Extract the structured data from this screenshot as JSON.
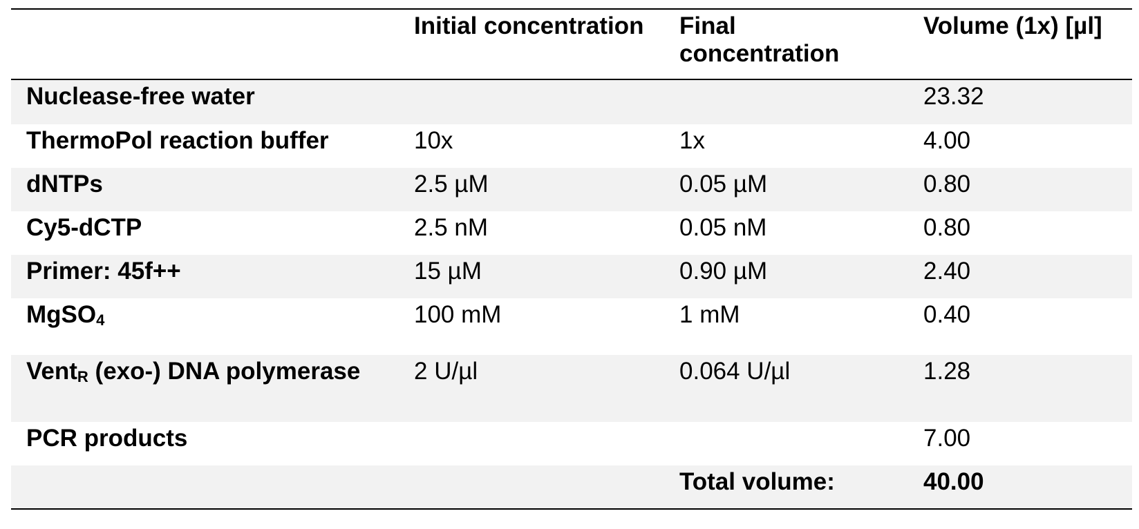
{
  "table": {
    "header": [
      "Initial concentration",
      "Final concentration",
      "Volume (1x) [µl]"
    ],
    "rows": [
      {
        "label": "Nuclease-free water",
        "cells": [
          null,
          null,
          "23.32"
        ]
      },
      {
        "label": "ThermoPol reaction buffer",
        "cells": [
          "10x",
          "1x",
          "4.00"
        ]
      },
      {
        "label": "dNTPs",
        "cells": [
          "2.5 µM",
          "0.05 µM",
          "0.80"
        ]
      },
      {
        "label": "Cy5-dCTP",
        "cells": [
          "2.5 nM",
          "0.05 nM",
          "0.80"
        ]
      },
      {
        "label": "Primer: 45f++",
        "cells": [
          "15 µM",
          "0.90 µM",
          "2.40"
        ]
      },
      {
        "label": "MgSO",
        "label_sub": "4",
        "cells": [
          "100 mM",
          "1 mM",
          "0.40"
        ]
      },
      {
        "label": "Vent",
        "label_sub": "R",
        "label_rest": " (exo-) DNA polymerase",
        "cells": [
          "2 U/µl",
          "0.064 U/µl",
          "1.28"
        ]
      },
      {
        "label": "PCR products",
        "cells": [
          null,
          null,
          "7.00"
        ]
      }
    ],
    "total": {
      "label": "Total volume:",
      "value": "40.00"
    }
  }
}
